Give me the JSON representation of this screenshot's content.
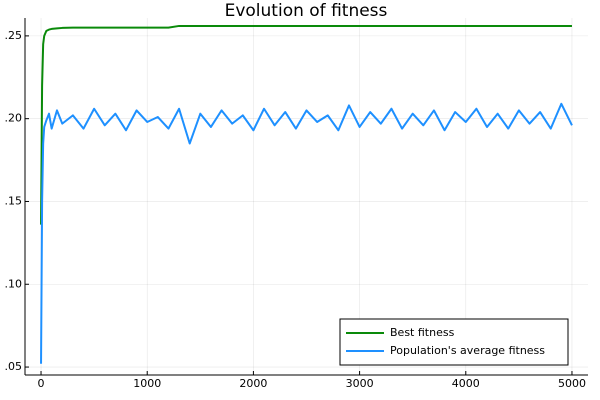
{
  "chart_data": {
    "type": "line",
    "title": "Evolution of fitness",
    "x": [
      0,
      10,
      20,
      30,
      50,
      75,
      100,
      150,
      200,
      300,
      400,
      500,
      600,
      700,
      800,
      900,
      1000,
      1100,
      1200,
      1300,
      1400,
      1500,
      1600,
      1700,
      1800,
      1900,
      2000,
      2100,
      2200,
      2300,
      2400,
      2500,
      2600,
      2700,
      2800,
      2900,
      3000,
      3100,
      3200,
      3300,
      3400,
      3500,
      3600,
      3700,
      3800,
      3900,
      4000,
      4100,
      4200,
      4300,
      4400,
      4500,
      4600,
      4700,
      4800,
      4900,
      5000
    ],
    "series": [
      {
        "name": "Best fitness",
        "color": "#0a8a0a",
        "values": [
          0.136,
          0.22,
          0.245,
          0.25,
          0.253,
          0.2538,
          0.2542,
          0.2545,
          0.2548,
          0.255,
          0.255,
          0.255,
          0.255,
          0.255,
          0.255,
          0.255,
          0.255,
          0.255,
          0.255,
          0.256,
          0.256,
          0.256,
          0.256,
          0.256,
          0.256,
          0.256,
          0.256,
          0.256,
          0.256,
          0.256,
          0.256,
          0.256,
          0.256,
          0.256,
          0.256,
          0.256,
          0.256,
          0.256,
          0.256,
          0.256,
          0.256,
          0.256,
          0.256,
          0.256,
          0.256,
          0.256,
          0.256,
          0.256,
          0.256,
          0.256,
          0.256,
          0.256,
          0.256,
          0.256,
          0.256,
          0.256,
          0.256
        ]
      },
      {
        "name": "Population's average fitness",
        "color": "#1e90ff",
        "values": [
          0.052,
          0.15,
          0.185,
          0.195,
          0.199,
          0.203,
          0.194,
          0.205,
          0.197,
          0.202,
          0.194,
          0.206,
          0.196,
          0.203,
          0.193,
          0.205,
          0.198,
          0.201,
          0.194,
          0.206,
          0.185,
          0.203,
          0.195,
          0.205,
          0.197,
          0.202,
          0.193,
          0.206,
          0.196,
          0.204,
          0.194,
          0.205,
          0.198,
          0.202,
          0.193,
          0.208,
          0.195,
          0.204,
          0.197,
          0.206,
          0.194,
          0.203,
          0.196,
          0.205,
          0.193,
          0.204,
          0.198,
          0.206,
          0.195,
          0.203,
          0.194,
          0.205,
          0.197,
          0.204,
          0.194,
          0.209,
          0.196
        ]
      }
    ],
    "xlim": [
      -151,
      5151
    ],
    "xticks": [
      0,
      1000,
      2000,
      3000,
      4000,
      5000
    ],
    "ylim": [
      0.0452,
      0.2608
    ],
    "yticks": [
      {
        "value": 0.05,
        "label": ".05"
      },
      {
        "value": 0.1,
        "label": ".10"
      },
      {
        "value": 0.15,
        "label": ".15"
      },
      {
        "value": 0.2,
        "label": ".20"
      },
      {
        "value": 0.25,
        "label": ".25"
      }
    ],
    "grid": true,
    "legend": "bottom-right"
  }
}
